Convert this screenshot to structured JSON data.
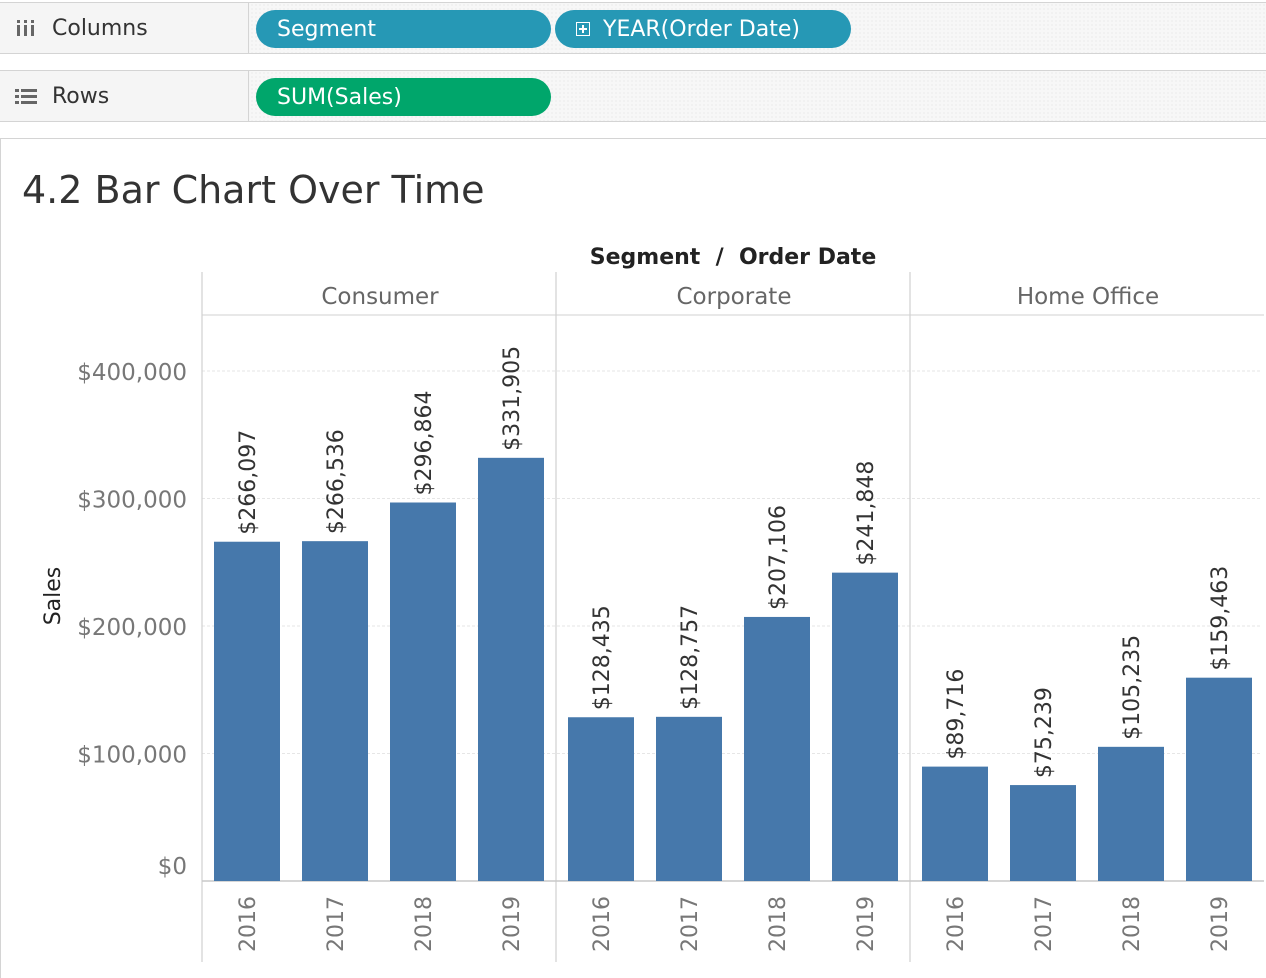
{
  "shelves": {
    "columns": {
      "label": "Columns",
      "icon": "columns-icon",
      "pills": [
        {
          "label": "Segment",
          "kind": "dimension"
        },
        {
          "label": "YEAR(Order Date)",
          "kind": "dimension",
          "icon": "expand-plus-icon"
        }
      ]
    },
    "rows": {
      "label": "Rows",
      "icon": "rows-icon",
      "pills": [
        {
          "label": "SUM(Sales)",
          "kind": "measure"
        }
      ]
    }
  },
  "sheet": {
    "title": "4.2 Bar Chart Over Time"
  },
  "colors": {
    "bar": "#4678ab",
    "dimension_pill": "#2698b5",
    "measure_pill": "#00a66b"
  },
  "chart_data": {
    "type": "bar",
    "header": "Segment  /  Order Date",
    "ylabel": "Sales",
    "ylim": [
      0,
      450000
    ],
    "y_ticks": [
      {
        "value": 0,
        "label": "$0"
      },
      {
        "value": 100000,
        "label": "$100,000"
      },
      {
        "value": 200000,
        "label": "$200,000"
      },
      {
        "value": 300000,
        "label": "$300,000"
      },
      {
        "value": 400000,
        "label": "$400,000"
      }
    ],
    "grid": true,
    "panels": [
      {
        "name": "Consumer",
        "categories": [
          "2016",
          "2017",
          "2018",
          "2019"
        ],
        "values": [
          266097,
          266536,
          296864,
          331905
        ],
        "labels": [
          "$266,097",
          "$266,536",
          "$296,864",
          "$331,905"
        ]
      },
      {
        "name": "Corporate",
        "categories": [
          "2016",
          "2017",
          "2018",
          "2019"
        ],
        "values": [
          128435,
          128757,
          207106,
          241848
        ],
        "labels": [
          "$128,435",
          "$128,757",
          "$207,106",
          "$241,848"
        ]
      },
      {
        "name": "Home Office",
        "categories": [
          "2016",
          "2017",
          "2018",
          "2019"
        ],
        "values": [
          89716,
          75239,
          105235,
          159463
        ],
        "labels": [
          "$89,716",
          "$75,239",
          "$105,235",
          "$159,463"
        ]
      }
    ]
  }
}
